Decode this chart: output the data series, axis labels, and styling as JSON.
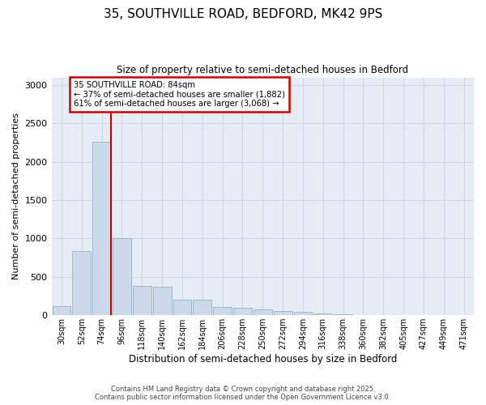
{
  "title_line1": "35, SOUTHVILLE ROAD, BEDFORD, MK42 9PS",
  "title_line2": "Size of property relative to semi-detached houses in Bedford",
  "xlabel": "Distribution of semi-detached houses by size in Bedford",
  "ylabel": "Number of semi-detached properties",
  "categories": [
    "30sqm",
    "52sqm",
    "74sqm",
    "96sqm",
    "118sqm",
    "140sqm",
    "162sqm",
    "184sqm",
    "206sqm",
    "228sqm",
    "250sqm",
    "272sqm",
    "294sqm",
    "316sqm",
    "338sqm",
    "360sqm",
    "382sqm",
    "405sqm",
    "427sqm",
    "449sqm",
    "471sqm"
  ],
  "values": [
    120,
    840,
    2260,
    1010,
    380,
    370,
    205,
    200,
    110,
    95,
    75,
    55,
    45,
    20,
    10,
    5,
    4,
    3,
    2,
    1,
    1
  ],
  "bar_color": "#ccd9e8",
  "bar_edge_color": "#92afc9",
  "bar_linewidth": 0.6,
  "red_line_bin": 2,
  "red_line_label": "35 SOUTHVILLE ROAD: 84sqm",
  "annotation_smaller": "← 37% of semi-detached houses are smaller (1,882)",
  "annotation_larger": "61% of semi-detached houses are larger (3,068) →",
  "annotation_box_color": "#ffffff",
  "annotation_box_edge": "#cc0000",
  "red_line_color": "#cc0000",
  "grid_color": "#cdd5e0",
  "background_color": "#e6ecf4",
  "ylim": [
    0,
    3100
  ],
  "yticks": [
    0,
    500,
    1000,
    1500,
    2000,
    2500,
    3000
  ],
  "footer1": "Contains HM Land Registry data © Crown copyright and database right 2025.",
  "footer2": "Contains public sector information licensed under the Open Government Licence v3.0."
}
